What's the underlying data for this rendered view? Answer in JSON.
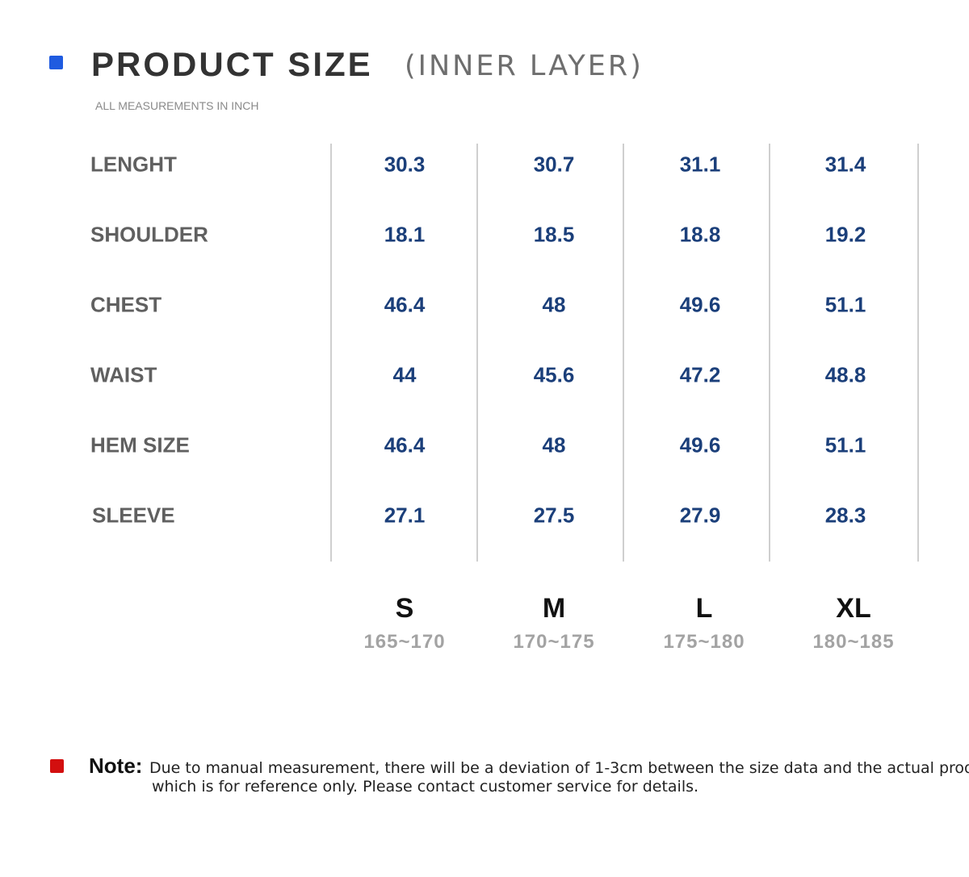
{
  "colors": {
    "accent_blue": "#1f5be0",
    "accent_red": "#d30f0f",
    "value_blue": "#1b3f7a"
  },
  "header": {
    "title": "PRODUCT SIZE",
    "subtitle": "(INNER LAYER)",
    "units_note": "ALL MEASUREMENTS IN INCH"
  },
  "table": {
    "rows": [
      {
        "label": "LENGHT",
        "values": [
          "30.3",
          "30.7",
          "31.1",
          "31.4"
        ]
      },
      {
        "label": "SHOULDER",
        "values": [
          "18.1",
          "18.5",
          "18.8",
          "19.2"
        ]
      },
      {
        "label": "CHEST",
        "values": [
          "46.4",
          "48",
          "49.6",
          "51.1"
        ]
      },
      {
        "label": "WAIST",
        "values": [
          "44",
          "45.6",
          "47.2",
          "48.8"
        ]
      },
      {
        "label": "HEM SIZE",
        "values": [
          "46.4",
          "48",
          "49.6",
          "51.1"
        ]
      },
      {
        "label": "SLEEVE",
        "values": [
          "27.1",
          "27.5",
          "27.9",
          "28.3"
        ]
      }
    ],
    "sizes": [
      {
        "label": "S",
        "range": "165~170"
      },
      {
        "label": "M",
        "range": "170~175"
      },
      {
        "label": "L",
        "range": "175~180"
      },
      {
        "label": "XL",
        "range": "180~185"
      }
    ]
  },
  "note": {
    "title": "Note:",
    "line1": "Due to manual measurement, there will be a deviation of 1-3cm between the size data and the actual product,",
    "line2": "which is for reference only. Please contact customer service for details."
  }
}
